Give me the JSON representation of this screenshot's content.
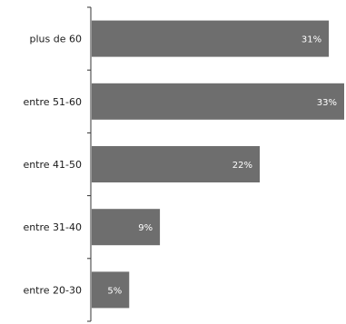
{
  "chart_data": {
    "type": "bar",
    "orientation": "horizontal",
    "categories": [
      "plus de 60",
      "entre 51-60",
      "entre 41-50",
      "entre 31-40",
      "entre 20-30"
    ],
    "values": [
      31,
      33,
      22,
      9,
      5
    ],
    "value_labels": [
      "31%",
      "33%",
      "22%",
      "9%",
      "5%"
    ],
    "unit": "%",
    "title": "",
    "xlabel": "",
    "ylabel": "",
    "xlim": [
      0,
      33
    ],
    "grid": false,
    "legend": "none",
    "bar_color": "#6e6e6e",
    "label_color": "#ffffff"
  }
}
